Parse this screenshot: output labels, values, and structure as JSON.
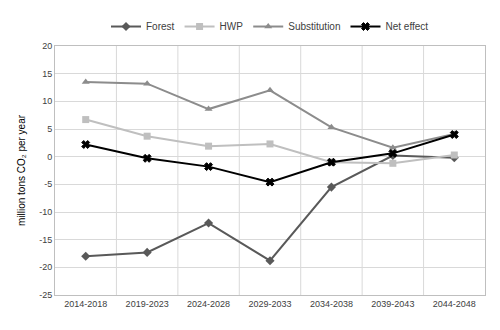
{
  "chart_data": {
    "type": "line",
    "y_label": "million tons CO₂ per year",
    "categories": [
      "2014-2018",
      "2019-2023",
      "2024-2028",
      "2029-2033",
      "2034-2038",
      "2039-2043",
      "2044-2048"
    ],
    "series": [
      {
        "name": "Forest",
        "color": "#595959",
        "marker": "diamond",
        "values": [
          -18,
          -17.3,
          -12,
          -18.8,
          -5.5,
          0.2,
          -0.2
        ]
      },
      {
        "name": "HWP",
        "color": "#bfbfbf",
        "marker": "square",
        "values": [
          6.7,
          3.7,
          1.9,
          2.3,
          -1,
          -1.2,
          0.3
        ]
      },
      {
        "name": "Substitution",
        "color": "#8c8c8c",
        "marker": "triangle-up",
        "values": [
          13.5,
          13.2,
          8.6,
          12,
          5.3,
          1.6,
          4.1
        ]
      },
      {
        "name": "Net effect",
        "color": "#000000",
        "marker": "x",
        "values": [
          2.2,
          -0.3,
          -1.8,
          -4.6,
          -1,
          0.6,
          4
        ]
      }
    ],
    "ylim": [
      -25,
      20
    ],
    "yticks": [
      -25,
      -20,
      -15,
      -10,
      -5,
      0,
      5,
      10,
      15,
      20
    ],
    "grid": true,
    "legend": "top"
  }
}
